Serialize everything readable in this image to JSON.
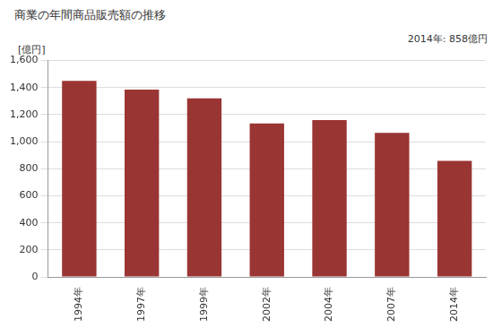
{
  "chart_data": {
    "type": "bar",
    "title": "商業の年間商品販売額の推移",
    "y_label": "[億円]",
    "annotations": [
      "2014年: 858億円"
    ],
    "categories": [
      "1994年",
      "1997年",
      "1999年",
      "2002年",
      "2004年",
      "2007年",
      "2014年"
    ],
    "values": [
      1450,
      1385,
      1320,
      1135,
      1160,
      1065,
      858
    ],
    "color": "#993533",
    "ylim": [
      0,
      1600
    ],
    "yticks": [
      0,
      200,
      400,
      600,
      800,
      {
        "value": 1000,
        "label": "1,000"
      },
      {
        "value": 1200,
        "label": "1,200"
      },
      {
        "value": 1400,
        "label": "1,400"
      },
      {
        "value": 1600,
        "label": "1,600"
      }
    ],
    "grid": true
  }
}
